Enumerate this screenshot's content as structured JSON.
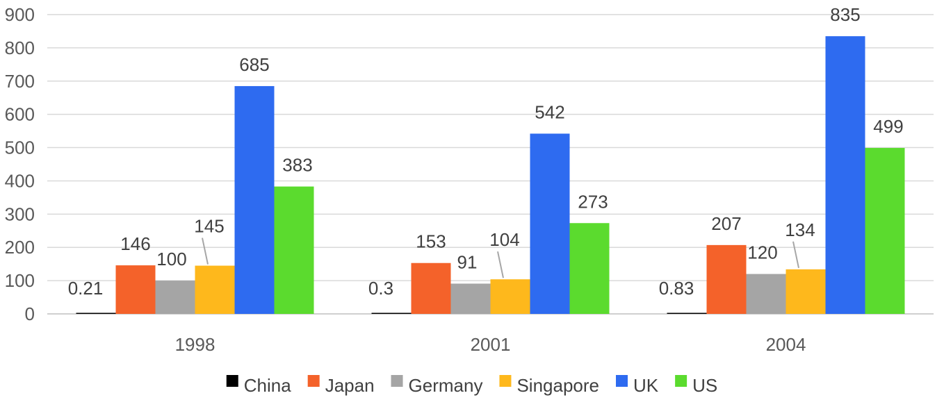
{
  "chart_data": {
    "type": "bar",
    "categories": [
      "1998",
      "2001",
      "2004"
    ],
    "series": [
      {
        "name": "China",
        "values": [
          0.21,
          0.3,
          0.83
        ],
        "labels": [
          "0.21",
          "0.3",
          "0.83"
        ],
        "color": "#000000"
      },
      {
        "name": "Japan",
        "values": [
          146,
          153,
          207
        ],
        "labels": [
          "146",
          "153",
          "207"
        ],
        "color": "#F4622A"
      },
      {
        "name": "Germany",
        "values": [
          100,
          91,
          120
        ],
        "labels": [
          "100",
          "91",
          "120"
        ],
        "color": "#A5A5A5"
      },
      {
        "name": "Singapore",
        "values": [
          145,
          104,
          134
        ],
        "labels": [
          "145",
          "104",
          "134"
        ],
        "color": "#FEB81C"
      },
      {
        "name": "UK",
        "values": [
          685,
          542,
          835
        ],
        "labels": [
          "685",
          "542",
          "835"
        ],
        "color": "#2E6BF0"
      },
      {
        "name": "US",
        "values": [
          383,
          273,
          499
        ],
        "labels": [
          "383",
          "273",
          "499"
        ],
        "color": "#5BDB2E"
      }
    ],
    "title": "",
    "xlabel": "",
    "ylabel": "",
    "ylim": [
      0,
      900
    ],
    "yticks": [
      0,
      100,
      200,
      300,
      400,
      500,
      600,
      700,
      800,
      900
    ],
    "grid": true,
    "legend_position": "bottom"
  }
}
